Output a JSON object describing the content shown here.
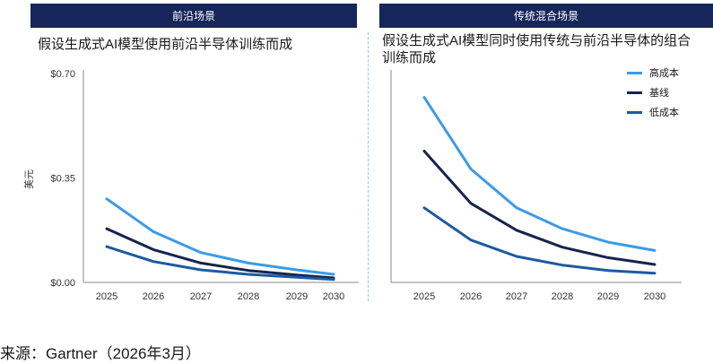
{
  "panels": {
    "left": {
      "band_label": "前沿场景",
      "title": "假设生成式AI模型使用前沿半导体训练而成"
    },
    "right": {
      "band_label": "传统混合场景",
      "title_line1": "假设生成式AI模型同时使用传统与前沿半导体的组合",
      "title_line2": "训练而成"
    }
  },
  "y_axis_label": "美元",
  "y_ticks": [
    "$0.70",
    "$0.35",
    "$0.00"
  ],
  "x_ticks": [
    "2025",
    "2026",
    "2027",
    "2028",
    "2029",
    "2030"
  ],
  "legend": [
    {
      "name": "高成本",
      "color": "#3c9be8"
    },
    {
      "name": "基线",
      "color": "#17234f"
    },
    {
      "name": "低成本",
      "color": "#1c5aa2"
    }
  ],
  "source": "来源：Gartner（2026年3月）",
  "chart_data": [
    {
      "type": "line",
      "title": "假设生成式AI模型使用前沿半导体训练而成",
      "ylabel": "美元",
      "x": [
        2025,
        2026,
        2027,
        2028,
        2029,
        2030
      ],
      "ylim": [
        0,
        0.7
      ],
      "y_ticks": [
        0,
        0.35,
        0.7
      ],
      "series": [
        {
          "name": "高成本",
          "color": "#3c9be8",
          "values": [
            0.28,
            0.17,
            0.1,
            0.065,
            0.042,
            0.027
          ]
        },
        {
          "name": "基线",
          "color": "#17234f",
          "values": [
            0.18,
            0.11,
            0.065,
            0.04,
            0.025,
            0.015
          ]
        },
        {
          "name": "低成本",
          "color": "#1c5aa2",
          "values": [
            0.12,
            0.07,
            0.042,
            0.027,
            0.017,
            0.01
          ]
        }
      ]
    },
    {
      "type": "line",
      "title": "假设生成式AI模型同时使用传统与前沿半导体的组合训练而成",
      "x": [
        2025,
        2026,
        2027,
        2028,
        2029,
        2030
      ],
      "ylim": [
        0,
        0.7
      ],
      "legend_position": "top-right",
      "series": [
        {
          "name": "高成本",
          "color": "#3c9be8",
          "values": [
            0.62,
            0.38,
            0.25,
            0.18,
            0.135,
            0.107
          ]
        },
        {
          "name": "基线",
          "color": "#17234f",
          "values": [
            0.44,
            0.265,
            0.175,
            0.118,
            0.083,
            0.06
          ]
        },
        {
          "name": "低成本",
          "color": "#1c5aa2",
          "values": [
            0.25,
            0.142,
            0.087,
            0.058,
            0.04,
            0.031
          ]
        }
      ]
    }
  ]
}
